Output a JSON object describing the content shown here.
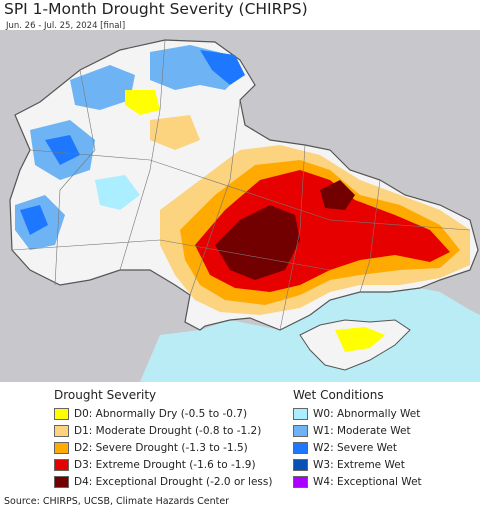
{
  "header": {
    "title": "SPI 1-Month Drought Severity (CHIRPS)",
    "subtitle": "Jun. 26 - Jul. 25, 2024 [final]"
  },
  "map": {
    "colors": {
      "land_background": "#f4f4f4",
      "outside_region": "#c8c8cc",
      "sea": "#b9ecf5",
      "border": "#555555"
    }
  },
  "legend": {
    "drought_heading": "Drought Severity",
    "wet_heading": "Wet Conditions",
    "drought_items": [
      {
        "label": "D0: Abnormally Dry (-0.5 to -0.7)",
        "color": "#ffff00"
      },
      {
        "label": "D1: Moderate Drought (-0.8 to -1.2)",
        "color": "#fcd37f"
      },
      {
        "label": "D2: Severe Drought (-1.3 to -1.5)",
        "color": "#ffaa00"
      },
      {
        "label": "D3: Extreme Drought (-1.6 to -1.9)",
        "color": "#e60000"
      },
      {
        "label": "D4: Exceptional Drought (-2.0 or less)",
        "color": "#730000"
      }
    ],
    "wet_items": [
      {
        "label": "W0: Abnormally Wet",
        "color": "#aaeeff"
      },
      {
        "label": "W1: Moderate Wet",
        "color": "#6eb4f4"
      },
      {
        "label": "W2: Severe Wet",
        "color": "#1e78ff"
      },
      {
        "label": "W3: Extreme Wet",
        "color": "#0a50b4"
      },
      {
        "label": "W4: Exceptional Wet",
        "color": "#aa00ff"
      }
    ]
  },
  "footer": {
    "source": "Source: CHIRPS, UCSB, Climate Hazards Center"
  }
}
